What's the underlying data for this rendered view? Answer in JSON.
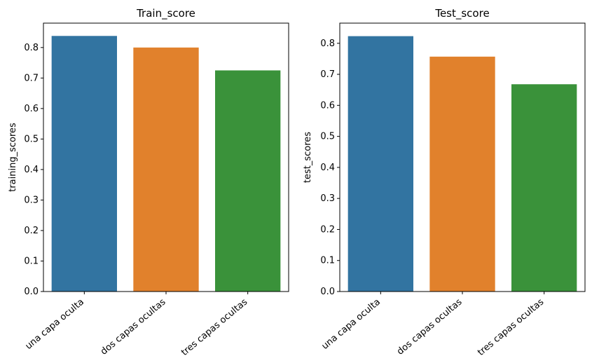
{
  "chart_data": [
    {
      "type": "bar",
      "title": "Train_score",
      "xlabel": "",
      "ylabel": "training_scores",
      "categories": [
        "una capa oculta",
        "dos capas ocultas",
        "tres capas ocultas"
      ],
      "values": [
        0.838,
        0.8,
        0.725
      ],
      "colors": [
        "#3274a1",
        "#e1812c",
        "#3a923a"
      ],
      "ylim": [
        0,
        0.88
      ],
      "yticks": [
        0.0,
        0.1,
        0.2,
        0.3,
        0.4,
        0.5,
        0.6,
        0.7,
        0.8
      ],
      "ytick_labels": [
        "0.0",
        "0.1",
        "0.2",
        "0.3",
        "0.4",
        "0.5",
        "0.6",
        "0.7",
        "0.8"
      ],
      "grid": false
    },
    {
      "type": "bar",
      "title": "Test_score",
      "xlabel": "",
      "ylabel": "test_scores",
      "categories": [
        "una capa oculta",
        "dos capas ocultas",
        "tres capas ocultas"
      ],
      "values": [
        0.823,
        0.757,
        0.668
      ],
      "colors": [
        "#3274a1",
        "#e1812c",
        "#3a923a"
      ],
      "ylim": [
        0,
        0.865
      ],
      "yticks": [
        0.0,
        0.1,
        0.2,
        0.3,
        0.4,
        0.5,
        0.6,
        0.7,
        0.8
      ],
      "ytick_labels": [
        "0.0",
        "0.1",
        "0.2",
        "0.3",
        "0.4",
        "0.5",
        "0.6",
        "0.7",
        "0.8"
      ],
      "grid": false
    }
  ]
}
